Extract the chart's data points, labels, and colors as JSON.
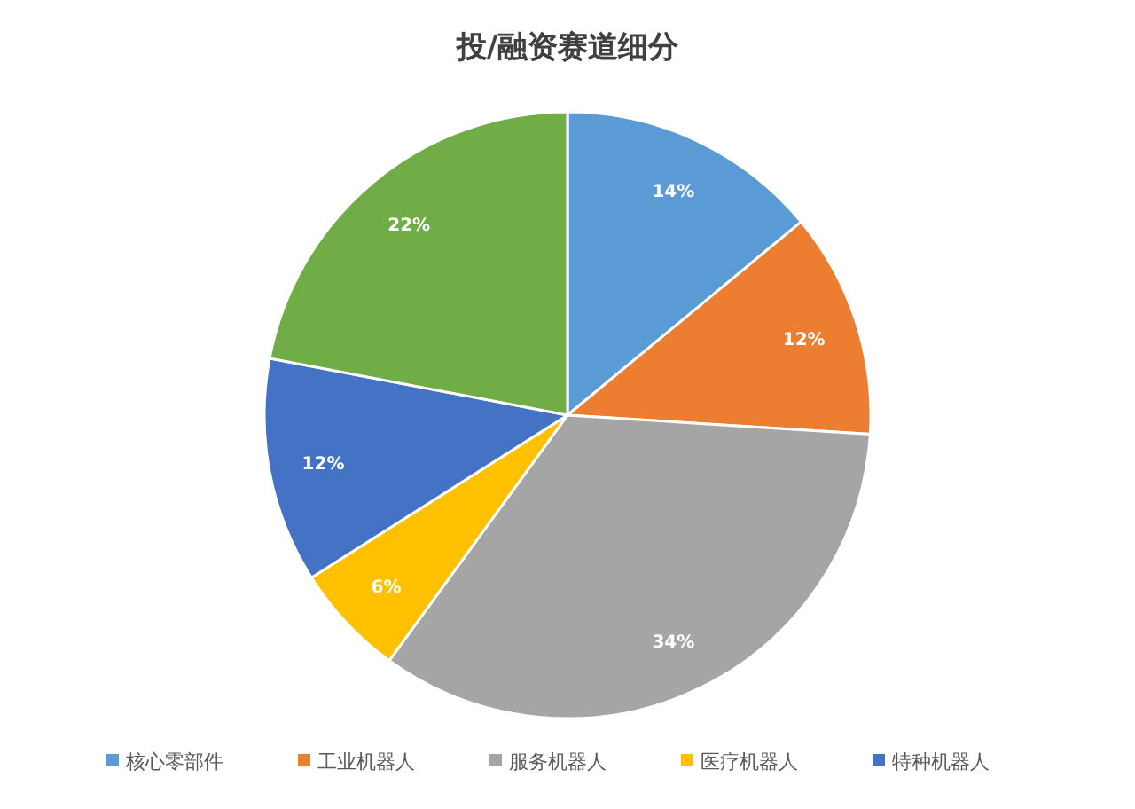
{
  "chart_data": {
    "type": "pie",
    "title": "投/融资赛道细分",
    "categories": [
      "核心零部件",
      "工业机器人",
      "服务机器人",
      "医疗机器人",
      "特种机器人",
      null
    ],
    "values": [
      14,
      12,
      34,
      6,
      12,
      22
    ],
    "colors": [
      "#5b9bd5",
      "#ed7d31",
      "#a5a5a5",
      "#ffc000",
      "#4472c4",
      "#70ad47"
    ],
    "value_labels": [
      "14%",
      "12%",
      "34%",
      "6%",
      "12%",
      "22%"
    ],
    "legend": "bottom"
  }
}
